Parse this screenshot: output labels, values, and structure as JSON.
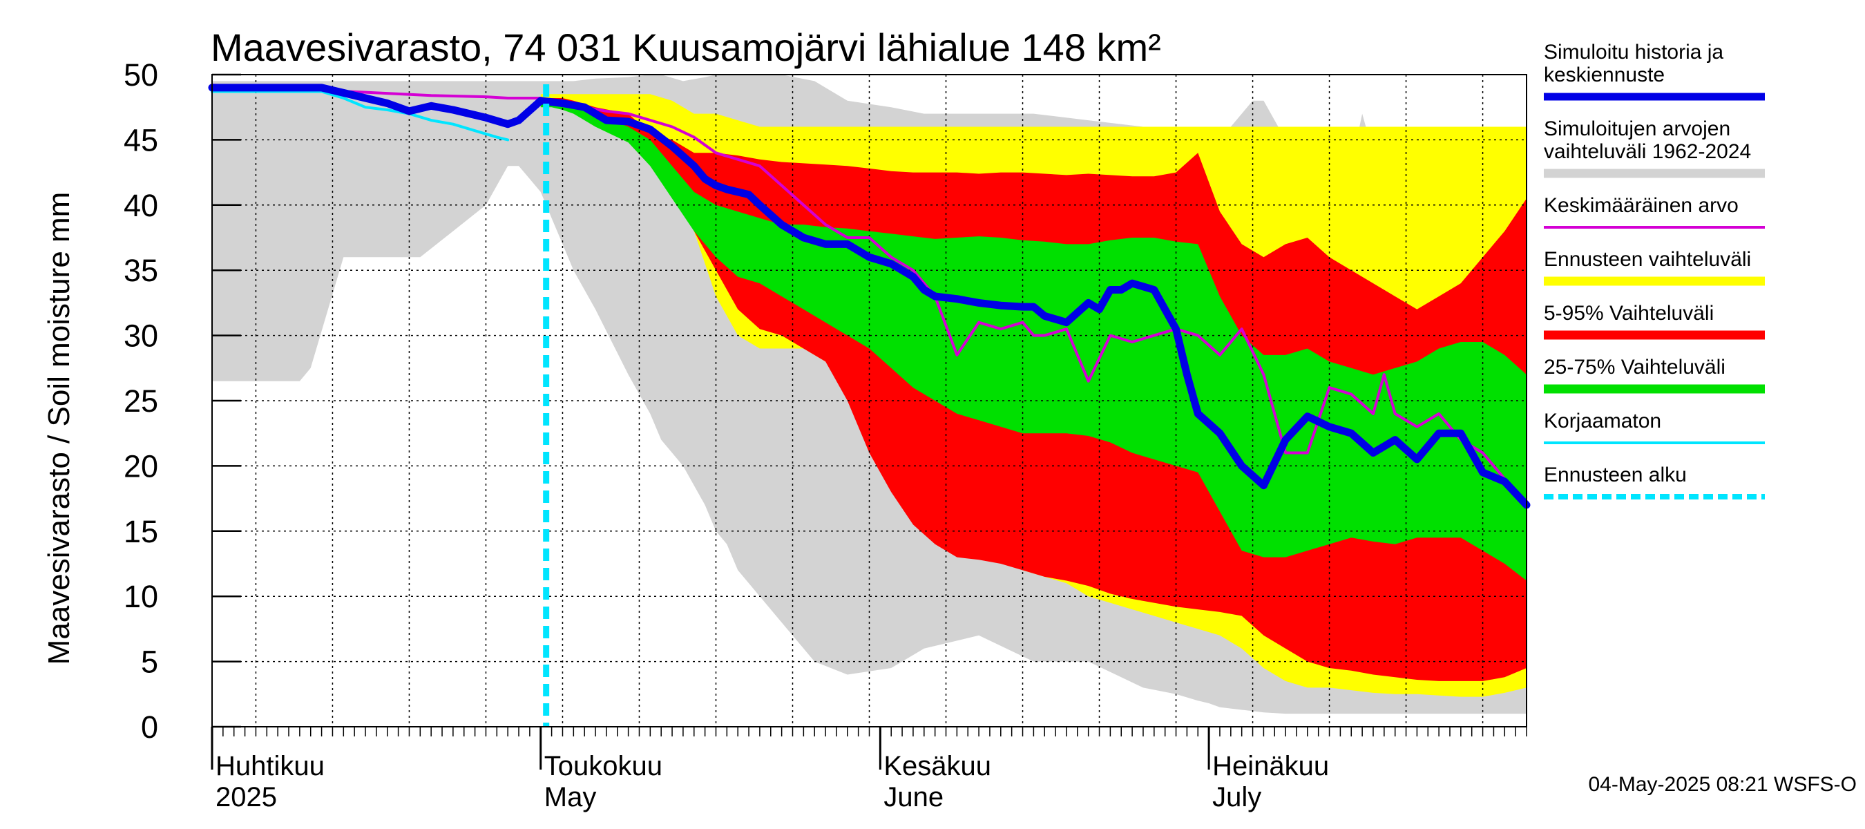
{
  "chart_data": {
    "type": "area",
    "title": "Maavesivarasto, 74 031 Kuusamojärvi lähialue 148 km²",
    "ylabel": "Maavesivarasto / Soil moisture   mm",
    "ylim": [
      0,
      50
    ],
    "y_ticks": [
      0,
      5,
      10,
      15,
      20,
      25,
      30,
      35,
      40,
      45,
      50
    ],
    "xlim": [
      0,
      120
    ],
    "x_origin_date": "2025-03-31",
    "forecast_start_day": 30.5,
    "months": [
      {
        "label_fi": "Huhtikuu",
        "label_en": "2025",
        "day": 0
      },
      {
        "label_fi": "Toukokuu",
        "label_en": "May",
        "day": 30
      },
      {
        "label_fi": "Kesäkuu",
        "label_en": "June",
        "day": 61
      },
      {
        "label_fi": "Heinäkuu",
        "label_en": "July",
        "day": 91
      }
    ],
    "series": {
      "historical_range": {
        "name": "Simuloitujen arvojen vaihteluväli 1962-2024",
        "color": "#d3d3d3",
        "x": [
          0,
          1,
          8,
          9,
          12,
          13,
          17,
          19,
          22,
          25,
          27,
          28,
          29,
          30,
          31,
          32,
          33,
          35,
          38,
          40,
          41,
          43,
          45,
          46,
          47,
          48,
          52,
          55,
          58,
          62,
          65,
          70,
          75,
          80,
          85,
          88,
          90,
          91,
          92,
          93,
          94,
          95,
          96,
          98,
          100,
          102,
          104,
          105,
          106,
          108,
          110,
          112,
          114,
          115,
          116,
          117,
          118,
          119,
          120
        ],
        "upper": [
          49.5,
          49.5,
          49.5,
          49.5,
          49.5,
          49.5,
          49.5,
          49.5,
          49.5,
          49.5,
          49.5,
          49.5,
          49.5,
          49.5,
          49.5,
          49.5,
          49.5,
          49.7,
          49.8,
          50,
          50,
          49.5,
          49.8,
          50,
          50,
          50,
          50,
          49.5,
          48,
          47.5,
          47,
          47,
          47,
          46.5,
          46,
          46,
          45.5,
          45.5,
          46,
          46,
          47,
          48,
          48,
          45,
          45,
          41,
          43,
          47,
          44,
          46,
          44,
          42,
          40,
          39,
          43,
          44,
          45,
          46,
          46
        ],
        "lower": [
          26.5,
          26.5,
          26.5,
          27.5,
          36,
          36,
          36,
          36,
          38,
          40,
          43,
          43,
          42,
          41,
          39,
          37,
          35,
          32,
          27,
          24,
          22,
          20,
          17,
          15,
          14,
          12,
          8,
          5,
          4,
          4.5,
          6,
          7,
          5,
          5,
          3,
          2.5,
          2,
          1.8,
          1.5,
          1.4,
          1.3,
          1.2,
          1.1,
          1,
          1,
          1,
          1,
          1,
          1,
          1,
          1,
          1,
          1,
          1,
          1,
          1,
          1,
          1,
          1
        ]
      },
      "forecast_range": {
        "name": "Ennusteen vaihteluväli",
        "color": "#ffff00",
        "x": [
          30,
          31,
          32,
          33,
          35,
          38,
          40,
          42,
          44,
          46,
          48,
          50,
          52,
          54,
          56,
          58,
          60,
          62,
          64,
          66,
          68,
          70,
          72,
          74,
          76,
          78,
          80,
          82,
          84,
          86,
          88,
          90,
          92,
          94,
          96,
          98,
          100,
          102,
          104,
          106,
          108,
          110,
          112,
          114,
          116,
          118,
          120
        ],
        "upper": [
          48.5,
          48.5,
          48.5,
          48.5,
          48.5,
          48.5,
          48.5,
          48,
          47,
          47,
          46.5,
          46,
          46,
          46,
          46,
          46,
          46,
          46,
          46,
          46,
          46,
          46,
          46,
          46,
          46,
          46,
          46,
          46,
          46,
          46,
          46,
          46,
          46,
          46,
          46,
          46,
          46,
          46,
          46,
          46,
          46,
          46,
          46,
          46,
          46,
          46,
          46
        ],
        "lower": [
          48,
          48,
          48,
          48,
          47.5,
          46.5,
          45,
          42,
          38,
          33,
          30,
          29,
          29,
          29,
          28,
          26,
          23,
          19,
          17,
          15,
          14,
          13.5,
          13,
          12,
          11.5,
          11,
          10,
          9.5,
          9,
          8.5,
          8,
          7.5,
          7,
          6,
          4.5,
          3.5,
          3,
          3,
          2.8,
          2.6,
          2.5,
          2.5,
          2.4,
          2.3,
          2.3,
          2.6,
          3
        ]
      },
      "p5_95": {
        "name": "5-95% Vaihteluväli",
        "color": "#ff0000",
        "x": [
          30,
          31,
          32,
          33,
          35,
          38,
          40,
          42,
          44,
          46,
          48,
          50,
          52,
          54,
          56,
          58,
          60,
          62,
          64,
          66,
          68,
          70,
          72,
          74,
          76,
          78,
          80,
          82,
          84,
          86,
          88,
          90,
          92,
          94,
          96,
          98,
          100,
          102,
          104,
          106,
          108,
          110,
          112,
          114,
          116,
          118,
          120
        ],
        "upper": [
          48.2,
          48.2,
          48.2,
          48,
          47.5,
          47,
          45.5,
          45,
          44,
          44,
          43.8,
          43.5,
          43.3,
          43.2,
          43.1,
          43,
          42.8,
          42.6,
          42.5,
          42.5,
          42.5,
          42.4,
          42.5,
          42.5,
          42.4,
          42.3,
          42.4,
          42.3,
          42.2,
          42.2,
          42.5,
          44,
          39.5,
          37,
          36,
          37,
          37.5,
          36,
          35,
          34,
          33,
          32,
          33,
          34,
          36,
          38,
          40.5
        ],
        "lower": [
          47.8,
          47.8,
          47.5,
          47.3,
          46.5,
          45,
          43.5,
          41,
          38,
          35,
          32,
          30.5,
          30,
          29,
          28,
          25,
          21,
          18,
          15.5,
          14,
          13,
          12.8,
          12.5,
          12,
          11.5,
          11.2,
          10.8,
          10.2,
          9.8,
          9.5,
          9.2,
          9,
          8.8,
          8.5,
          7,
          6,
          5,
          4.5,
          4.3,
          4,
          3.8,
          3.6,
          3.5,
          3.5,
          3.5,
          3.8,
          4.5
        ]
      },
      "p25_75": {
        "name": "25-75% Vaihteluväli",
        "color": "#00e000",
        "x": [
          30,
          31,
          32,
          33,
          35,
          38,
          40,
          42,
          44,
          46,
          48,
          50,
          52,
          54,
          56,
          58,
          60,
          62,
          64,
          66,
          68,
          70,
          72,
          74,
          76,
          78,
          80,
          82,
          84,
          86,
          88,
          90,
          92,
          94,
          96,
          98,
          100,
          102,
          104,
          106,
          108,
          110,
          112,
          114,
          116,
          118,
          120
        ],
        "upper": [
          48,
          48,
          48,
          47.8,
          47,
          46,
          45,
          43,
          41,
          40,
          39.5,
          39,
          38.5,
          38.5,
          38.3,
          38.2,
          38,
          37.8,
          37.6,
          37.4,
          37.5,
          37.6,
          37.5,
          37.3,
          37.2,
          37,
          37,
          37.3,
          37.5,
          37.5,
          37.2,
          37,
          33,
          30,
          28.5,
          28.5,
          29,
          28,
          27.5,
          27,
          27.5,
          28,
          29,
          29.5,
          29.5,
          28.5,
          27
        ],
        "lower": [
          47.5,
          47.5,
          47.3,
          47,
          46,
          44.8,
          43,
          40.5,
          38,
          36,
          34.5,
          34,
          33,
          32,
          31,
          30,
          29,
          27.5,
          26,
          25,
          24,
          23.5,
          23,
          22.5,
          22.5,
          22.5,
          22.3,
          21.8,
          21,
          20.5,
          20,
          19.5,
          16.5,
          13.5,
          13,
          13,
          13.5,
          14,
          14.5,
          14.2,
          14,
          14.5,
          14.5,
          14.5,
          13.5,
          12.5,
          11.2
        ]
      },
      "mean": {
        "name": "Keskimääräinen arvo",
        "color": "#d400d4",
        "x": [
          0,
          5,
          10,
          15,
          20,
          25,
          27,
          30,
          32,
          34,
          36,
          38,
          40,
          42,
          44,
          46,
          48,
          50,
          52,
          54,
          56,
          58,
          60,
          62,
          64,
          66,
          68,
          70,
          72,
          74,
          75,
          76,
          78,
          80,
          82,
          84,
          86,
          88,
          90,
          92,
          94,
          96,
          98,
          100,
          102,
          104,
          106,
          107,
          108,
          110,
          112,
          114,
          116,
          118,
          120
        ],
        "values": [
          49.2,
          49,
          48.8,
          48.6,
          48.4,
          48.3,
          48.2,
          48.2,
          47.8,
          47.5,
          47.2,
          47,
          46.5,
          46,
          45.2,
          44,
          43.5,
          43,
          41.5,
          40,
          38.5,
          37.5,
          37.5,
          36,
          35,
          33,
          28.5,
          31,
          30.5,
          31,
          30,
          30,
          30.5,
          26.5,
          30,
          29.5,
          30,
          30.5,
          30,
          28.5,
          30.5,
          27,
          21,
          21,
          26,
          25.5,
          24,
          27,
          24,
          23,
          24,
          22,
          21,
          19,
          17
        ]
      },
      "simulated": {
        "name": "Simuloitu historia ja keskiennuste",
        "color": "#0000e6",
        "x": [
          0,
          2,
          4,
          6,
          8,
          10,
          12,
          14,
          16,
          18,
          20,
          22,
          24,
          25,
          27,
          28,
          30,
          32,
          34,
          36,
          38,
          40,
          42,
          44,
          45,
          46,
          47,
          48,
          49,
          50,
          52,
          54,
          56,
          58,
          60,
          62,
          64,
          65,
          66,
          68,
          70,
          72,
          74,
          75,
          76,
          78,
          80,
          81,
          82,
          83,
          84,
          86,
          88,
          89,
          90,
          92,
          94,
          96,
          98,
          100,
          102,
          104,
          106,
          108,
          110,
          112,
          114,
          116,
          118,
          120
        ],
        "values": [
          49,
          49,
          49,
          49,
          49,
          49,
          48.6,
          48.2,
          47.8,
          47.2,
          47.6,
          47.3,
          46.9,
          46.7,
          46.2,
          46.5,
          48,
          47.8,
          47.5,
          46.5,
          46.4,
          45.8,
          44.5,
          43,
          42,
          41.5,
          41.2,
          41,
          40.8,
          40,
          38.5,
          37.5,
          37,
          37,
          36,
          35.5,
          34.5,
          33.5,
          33,
          32.8,
          32.5,
          32.3,
          32.2,
          32.2,
          31.5,
          31,
          32.5,
          32,
          33.5,
          33.5,
          34,
          33.5,
          30.5,
          27,
          24,
          22.5,
          20,
          18.5,
          22,
          23.8,
          23,
          22.5,
          21,
          22,
          20.5,
          22.5,
          22.5,
          19.5,
          18.8,
          17
        ]
      },
      "uncorrected": {
        "name": "Korjaamaton",
        "color": "#00e5ff",
        "x": [
          0,
          10,
          12,
          14,
          16,
          18,
          20,
          22,
          24,
          26,
          27
        ],
        "values": [
          48.7,
          48.7,
          48.2,
          47.5,
          47.3,
          47,
          46.5,
          46.2,
          45.7,
          45.2,
          45
        ]
      }
    },
    "legend": [
      {
        "key": "simulated",
        "lines": [
          "Simuloitu historia ja",
          "keskiennuste"
        ],
        "style": "thick",
        "color": "#0000e6"
      },
      {
        "key": "historical_range",
        "lines": [
          "Simuloitujen arvojen",
          "vaihteluväli 1962-2024"
        ],
        "style": "band",
        "color": "#d3d3d3"
      },
      {
        "key": "mean",
        "lines": [
          "Keskimääräinen arvo"
        ],
        "style": "thin",
        "color": "#d400d4"
      },
      {
        "key": "forecast_range",
        "lines": [
          "Ennusteen vaihteluväli"
        ],
        "style": "band",
        "color": "#ffff00"
      },
      {
        "key": "p5_95",
        "lines": [
          "5-95% Vaihteluväli"
        ],
        "style": "band",
        "color": "#ff0000"
      },
      {
        "key": "p25_75",
        "lines": [
          "25-75% Vaihteluväli"
        ],
        "style": "band",
        "color": "#00e000"
      },
      {
        "key": "uncorrected",
        "lines": [
          "Korjaamaton"
        ],
        "style": "thin",
        "color": "#00e5ff"
      },
      {
        "key": "forecast_start",
        "lines": [
          "Ennusteen alku"
        ],
        "style": "dashed",
        "color": "#00e5ff"
      }
    ],
    "timestamp": "04-May-2025 08:21 WSFS-O"
  }
}
